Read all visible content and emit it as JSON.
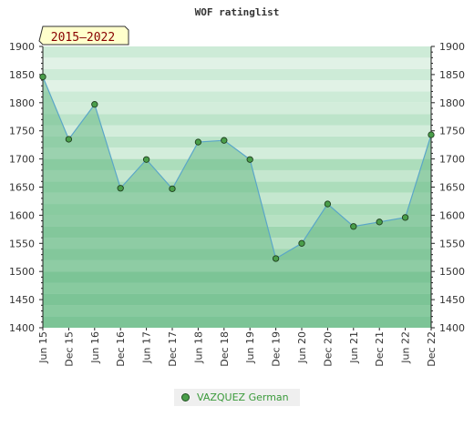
{
  "chart_data": {
    "type": "area",
    "title": "WOF ratinglist",
    "badge": "2015–2022",
    "x": [
      "Jun 15",
      "Dec 15",
      "Jun 16",
      "Dec 16",
      "Jun 17",
      "Dec 17",
      "Jun 18",
      "Dec 18",
      "Jun 19",
      "Dec 19",
      "Jun 20",
      "Dec 20",
      "Jun 21",
      "Dec 21",
      "Jun 22",
      "Dec 22"
    ],
    "series": [
      {
        "name": "VAZQUEZ German",
        "values": [
          1846,
          1735,
          1797,
          1648,
          1699,
          1647,
          1730,
          1733,
          1699,
          1523,
          1550,
          1620,
          1580,
          1588,
          1596,
          1743
        ]
      }
    ],
    "ylim": [
      1400,
      1900
    ],
    "yticks": [
      1400,
      1450,
      1500,
      1550,
      1600,
      1650,
      1700,
      1750,
      1800,
      1850,
      1900
    ],
    "grid": true,
    "legend_position": "bottom",
    "colors": {
      "line": "#5aa6c8",
      "fill": "#6dbb8a",
      "marker": "#4a9e4a",
      "band_dark": "#7cc596",
      "band_light": "#f2f9f4",
      "badge_bg": "#ffffcc"
    }
  }
}
